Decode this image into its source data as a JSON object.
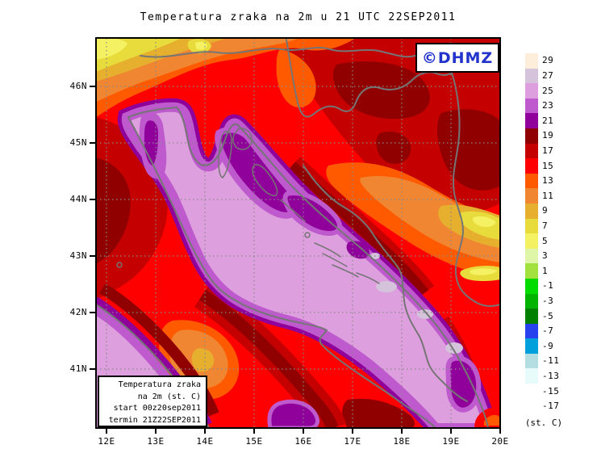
{
  "title": "Temperatura zraka na 2m u 21 UTC 22SEP2011",
  "watermark": {
    "text": "©DHMZ",
    "color": "#2233cc"
  },
  "colorbar": {
    "unit_label": "(st. C)",
    "labels": [
      "29",
      "27",
      "25",
      "23",
      "21",
      "19",
      "17",
      "15",
      "13",
      "11",
      "9",
      "7",
      "5",
      "3",
      "1",
      "-1",
      "-3",
      "-5",
      "-7",
      "-9",
      "-11",
      "-13",
      "-15",
      "-17"
    ],
    "colors": [
      "#FCEEDB",
      "#D4C3DA",
      "#DD9FDE",
      "#BE59CE",
      "#90009A",
      "#900000",
      "#C40000",
      "#FF0000",
      "#FF5A00",
      "#F08632",
      "#E6AF2E",
      "#E8DC3C",
      "#F4F163",
      "#DFF5A8",
      "#A3E13F",
      "#00DC00",
      "#00B400",
      "#008000",
      "#2741EE",
      "#00A0DC",
      "#B5DEE2",
      "#E8FBFB",
      "#FFFFFF"
    ]
  },
  "axes": {
    "lat_labels": [
      "46N",
      "45N",
      "44N",
      "43N",
      "42N",
      "41N"
    ],
    "lon_labels": [
      "12E",
      "13E",
      "14E",
      "15E",
      "16E",
      "17E",
      "18E",
      "19E",
      "20E"
    ]
  },
  "legend_box": {
    "lines": [
      "Temperatura zraka",
      "na 2m (st. C)",
      "start 00z20sep2011",
      "termin 21Z22SEP2011"
    ]
  }
}
